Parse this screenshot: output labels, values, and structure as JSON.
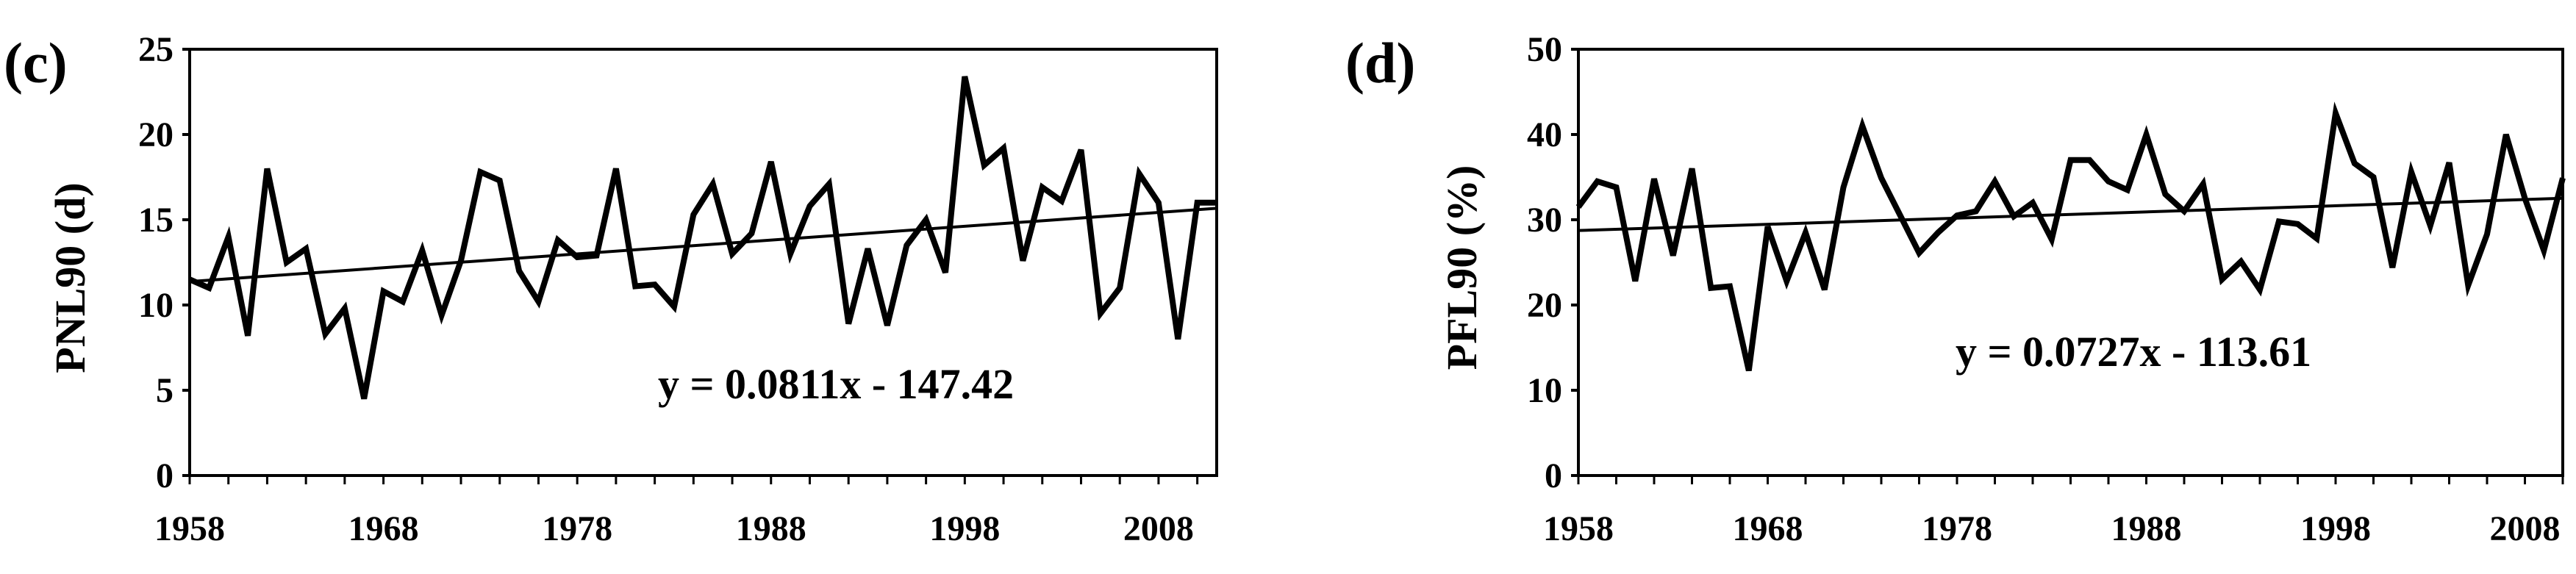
{
  "chart_data": [
    {
      "type": "line",
      "panel_label": "(c)",
      "ylabel": "PNL90 (d)",
      "xlim": [
        1958,
        2011
      ],
      "ylim": [
        0,
        25
      ],
      "yticks": [
        0,
        5,
        10,
        15,
        20,
        25
      ],
      "xticks": [
        1958,
        1968,
        1978,
        1988,
        1998,
        2008
      ],
      "grid": false,
      "series": [
        {
          "x": [
            1958,
            1959,
            1960,
            1961,
            1962,
            1963,
            1964,
            1965,
            1966,
            1967,
            1968,
            1969,
            1970,
            1971,
            1972,
            1973,
            1974,
            1975,
            1976,
            1977,
            1978,
            1979,
            1980,
            1981,
            1982,
            1983,
            1984,
            1985,
            1986,
            1987,
            1988,
            1989,
            1990,
            1991,
            1992,
            1993,
            1994,
            1995,
            1996,
            1997,
            1998,
            1999,
            2000,
            2001,
            2002,
            2003,
            2004,
            2005,
            2006,
            2007,
            2008,
            2009,
            2010,
            2011
          ],
          "values": [
            11.5,
            11.0,
            14.0,
            8.2,
            18.0,
            12.5,
            13.3,
            8.3,
            9.8,
            4.5,
            10.8,
            10.2,
            13.2,
            9.4,
            12.6,
            17.8,
            17.3,
            12.0,
            10.2,
            13.8,
            12.8,
            12.9,
            18.0,
            11.1,
            11.2,
            9.9,
            15.3,
            17.1,
            13.0,
            14.2,
            18.4,
            13.0,
            15.8,
            17.1,
            8.9,
            13.3,
            8.8,
            13.5,
            15.0,
            11.9,
            23.4,
            18.2,
            19.2,
            12.6,
            16.9,
            16.1,
            19.1,
            9.5,
            11.0,
            17.7,
            16.0,
            8.0,
            16.0,
            16.0
          ]
        }
      ],
      "trendline": {
        "slope": 0.0811,
        "intercept": -147.42
      },
      "annotation": "y = 0.0811x - 147.42"
    },
    {
      "type": "line",
      "panel_label": "(d)",
      "ylabel": "PFL90 (%)",
      "xlim": [
        1958,
        2010
      ],
      "ylim": [
        0,
        50
      ],
      "yticks": [
        0,
        10,
        20,
        30,
        40,
        50
      ],
      "xticks": [
        1958,
        1968,
        1978,
        1988,
        1998,
        2008
      ],
      "grid": false,
      "series": [
        {
          "x": [
            1958,
            1959,
            1960,
            1961,
            1962,
            1963,
            1964,
            1965,
            1966,
            1967,
            1968,
            1969,
            1970,
            1971,
            1972,
            1973,
            1974,
            1975,
            1976,
            1977,
            1978,
            1979,
            1980,
            1981,
            1982,
            1983,
            1984,
            1985,
            1986,
            1987,
            1988,
            1989,
            1990,
            1991,
            1992,
            1993,
            1994,
            1995,
            1996,
            1997,
            1998,
            1999,
            2000,
            2001,
            2002,
            2003,
            2004,
            2005,
            2006,
            2007,
            2008,
            2009,
            2010
          ],
          "values": [
            31.5,
            34.5,
            33.8,
            22.8,
            34.8,
            25.8,
            36.0,
            22.0,
            22.2,
            12.3,
            29.2,
            22.8,
            28.5,
            21.8,
            33.8,
            41.0,
            34.9,
            30.5,
            26.1,
            28.5,
            30.5,
            31.0,
            34.5,
            30.4,
            32.0,
            27.7,
            37.0,
            37.0,
            34.5,
            33.5,
            40.0,
            33.0,
            31.0,
            34.2,
            23.0,
            25.1,
            21.8,
            29.8,
            29.5,
            27.8,
            42.5,
            36.6,
            35.0,
            24.4,
            35.6,
            29.3,
            36.7,
            22.3,
            28.3,
            40.0,
            32.5,
            26.4,
            34.9
          ]
        }
      ],
      "trendline": {
        "slope": 0.0727,
        "intercept": -113.61
      },
      "annotation": "y = 0.0727x - 113.61"
    }
  ]
}
